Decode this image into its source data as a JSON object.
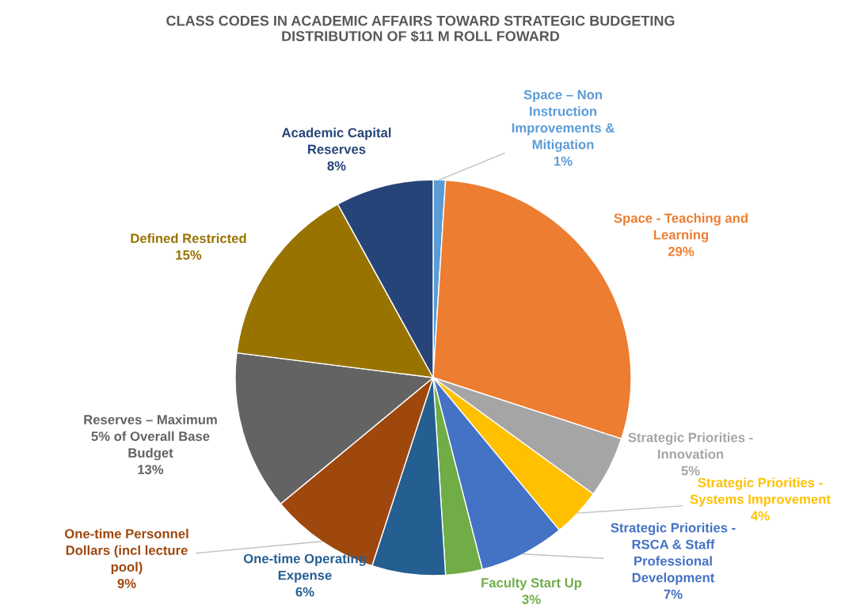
{
  "chart_data": {
    "type": "pie",
    "title": "CLASS CODES IN ACADEMIC AFFAIRS TOWARD STRATEGIC BUDGETING\nDISTRIBUTION OF $11 M ROLL FOWARD",
    "categories": [
      "Space – Non Instruction Improvements & Mitigation",
      "Space - Teaching and Learning",
      "Strategic Priorities - Innovation",
      "Strategic Priorities - Systems Improvement",
      "Strategic Priorities - RSCA & Staff Professional Development",
      "Faculty Start Up",
      "One-time Operating Expense",
      "One-time Personnel Dollars (incl lecture pool)",
      "Reserves – Maximum 5% of Overall Base Budget",
      "Defined Restricted",
      "Academic Capital Reserves"
    ],
    "values": [
      1,
      29,
      5,
      4,
      7,
      3,
      6,
      9,
      13,
      15,
      8
    ],
    "value_labels": [
      "1%",
      "29%",
      "5%",
      "4%",
      "7%",
      "3%",
      "6%",
      "9%",
      "13%",
      "15%",
      "8%"
    ],
    "colors": [
      "#5b9bd5",
      "#ed7d31",
      "#a5a5a5",
      "#ffc000",
      "#4472c4",
      "#70ad47",
      "#255e91",
      "#9e480e",
      "#636363",
      "#997300",
      "#264478"
    ],
    "legend": false
  }
}
